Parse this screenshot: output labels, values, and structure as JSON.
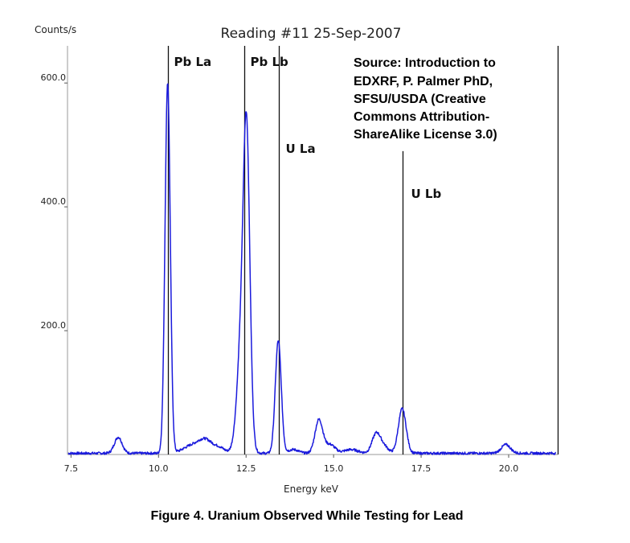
{
  "chart_data": {
    "type": "line",
    "title": "Reading #11 25-Sep-2007",
    "ylabel": "Counts/s",
    "xlabel": "Energy keV",
    "xlim": [
      7.4,
      21.4
    ],
    "ylim": [
      0,
      660
    ],
    "x_ticks": [
      {
        "value": 7.5,
        "label": "7.5"
      },
      {
        "value": 10.0,
        "label": "10.0"
      },
      {
        "value": 12.5,
        "label": "12.5"
      },
      {
        "value": 15.0,
        "label": "15.0"
      },
      {
        "value": 17.5,
        "label": "17.5"
      },
      {
        "value": 20.0,
        "label": "20.0"
      }
    ],
    "y_ticks": [
      {
        "value": 200,
        "label": "200.0"
      },
      {
        "value": 400,
        "label": "400.0"
      },
      {
        "value": 600,
        "label": "600.0"
      }
    ],
    "series": [
      {
        "color": "#1a1adc",
        "baseline": 2,
        "noise": 2,
        "peaks": [
          {
            "center": 8.85,
            "height": 26,
            "width": 0.11
          },
          {
            "center": 10.26,
            "height": 598,
            "width": 0.075
          },
          {
            "center": 10.95,
            "height": 12,
            "width": 0.25
          },
          {
            "center": 11.35,
            "height": 20,
            "width": 0.2
          },
          {
            "center": 11.75,
            "height": 8,
            "width": 0.15
          },
          {
            "center": 12.41,
            "height": 218,
            "width": 0.14
          },
          {
            "center": 12.52,
            "height": 385,
            "width": 0.09
          },
          {
            "center": 13.42,
            "height": 182,
            "width": 0.085
          },
          {
            "center": 13.85,
            "height": 6,
            "width": 0.15
          },
          {
            "center": 14.58,
            "height": 54,
            "width": 0.11
          },
          {
            "center": 14.9,
            "height": 14,
            "width": 0.14
          },
          {
            "center": 15.5,
            "height": 6,
            "width": 0.2
          },
          {
            "center": 16.22,
            "height": 32,
            "width": 0.12
          },
          {
            "center": 16.45,
            "height": 10,
            "width": 0.12
          },
          {
            "center": 16.96,
            "height": 72,
            "width": 0.11
          },
          {
            "center": 19.92,
            "height": 14,
            "width": 0.13
          }
        ]
      }
    ],
    "annotations": [
      {
        "label": "Pb La",
        "x": 10.26,
        "line_top": 660
      },
      {
        "label": "Pb Lb",
        "x": 12.46,
        "line_top": 660
      },
      {
        "label": "U La",
        "x": 13.44,
        "line_top": 660
      },
      {
        "label": "U Lb",
        "x": 16.96,
        "line_top": 490
      },
      {
        "label": "",
        "x": 21.4,
        "line_top": 660
      }
    ],
    "grid": false
  },
  "source_note": [
    "Source: Introduction to",
    "EDXRF, P. Palmer PhD,",
    "SFSU/USDA (Creative",
    "Commons Attribution-",
    "ShareAlike License 3.0)"
  ],
  "caption": "Figure 4. Uranium Observed While Testing for Lead"
}
